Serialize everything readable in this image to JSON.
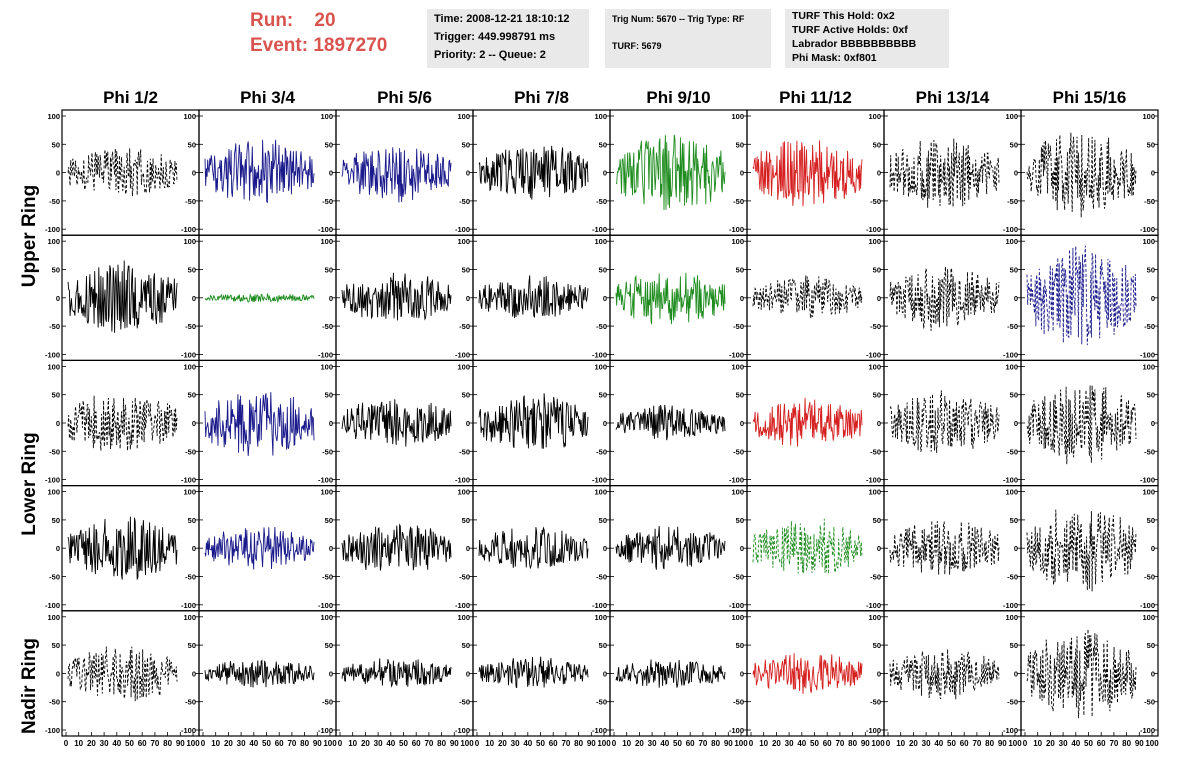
{
  "run": {
    "run_label": "Run:",
    "run_value": "20",
    "event_label": "Event:",
    "event_value": "1897270"
  },
  "info_box_1": {
    "time": "Time: 2008-12-21 18:10:12",
    "trigger": "Trigger: 449.998791 ms",
    "priority": "Priority: 2 -- Queue: 2"
  },
  "info_box_2": {
    "trig": "Trig Num: 5670 -- Trig Type: RF",
    "turf": "TURF: 5679"
  },
  "info_box_3": {
    "this_hold": "TURF This Hold: 0x2",
    "active_holds": "TURF Active Holds: 0xf",
    "labrador": "Labrador BBBBBBBBBB",
    "phi_mask": "Phi Mask: 0xf801"
  },
  "phi_headers": [
    "Phi 1/2",
    "Phi 3/4",
    "Phi 5/6",
    "Phi 7/8",
    "Phi 9/10",
    "Phi 11/12",
    "Phi 13/14",
    "Phi 15/16"
  ],
  "ring_labels": {
    "upper": "Upper Ring",
    "lower": "Lower Ring",
    "nadir": "Nadir Ring"
  },
  "y_ticks": [
    "100",
    "50",
    "0",
    "-50",
    "-100"
  ],
  "x_tick_labels": [
    "0",
    "10",
    "20",
    "30",
    "40",
    "50",
    "60",
    "70",
    "80",
    "90",
    "100"
  ],
  "colors": {
    "black": "#000000",
    "blue": "#1a1a8c",
    "green": "#1e8c1e",
    "red": "#d62020"
  },
  "panels": [
    [
      {
        "color": "black",
        "style": "dashed",
        "amp": 0.35,
        "seed": 1
      },
      {
        "color": "blue",
        "style": "solid",
        "amp": 0.45,
        "seed": 2
      },
      {
        "color": "blue",
        "style": "solid",
        "amp": 0.4,
        "seed": 3
      },
      {
        "color": "black",
        "style": "solid",
        "amp": 0.4,
        "seed": 4
      },
      {
        "color": "green",
        "style": "solid",
        "amp": 0.55,
        "seed": 5
      },
      {
        "color": "red",
        "style": "solid",
        "amp": 0.5,
        "seed": 6
      },
      {
        "color": "black",
        "style": "dashed",
        "amp": 0.5,
        "seed": 7
      },
      {
        "color": "black",
        "style": "dashed",
        "amp": 0.6,
        "seed": 8
      }
    ],
    [
      {
        "color": "black",
        "style": "solid",
        "amp": 0.5,
        "seed": 9
      },
      {
        "color": "green",
        "style": "solid",
        "amp": 0.06,
        "seed": 10
      },
      {
        "color": "black",
        "style": "solid",
        "amp": 0.35,
        "seed": 11
      },
      {
        "color": "black",
        "style": "solid",
        "amp": 0.3,
        "seed": 12
      },
      {
        "color": "green",
        "style": "solid",
        "amp": 0.4,
        "seed": 13
      },
      {
        "color": "black",
        "style": "dashed",
        "amp": 0.3,
        "seed": 14
      },
      {
        "color": "black",
        "style": "dashed",
        "amp": 0.45,
        "seed": 15
      },
      {
        "color": "blue",
        "style": "dashed",
        "amp": 0.7,
        "seed": 16
      }
    ],
    [
      {
        "color": "black",
        "style": "dashed",
        "amp": 0.45,
        "seed": 17
      },
      {
        "color": "blue",
        "style": "solid",
        "amp": 0.5,
        "seed": 18
      },
      {
        "color": "black",
        "style": "solid",
        "amp": 0.35,
        "seed": 19
      },
      {
        "color": "black",
        "style": "solid",
        "amp": 0.4,
        "seed": 20
      },
      {
        "color": "black",
        "style": "solid",
        "amp": 0.25,
        "seed": 21
      },
      {
        "color": "red",
        "style": "solid",
        "amp": 0.35,
        "seed": 22
      },
      {
        "color": "black",
        "style": "dashed",
        "amp": 0.45,
        "seed": 23
      },
      {
        "color": "black",
        "style": "dashed",
        "amp": 0.55,
        "seed": 24
      }
    ],
    [
      {
        "color": "black",
        "style": "solid",
        "amp": 0.45,
        "seed": 25
      },
      {
        "color": "blue",
        "style": "solid",
        "amp": 0.3,
        "seed": 26
      },
      {
        "color": "black",
        "style": "solid",
        "amp": 0.35,
        "seed": 27
      },
      {
        "color": "black",
        "style": "solid",
        "amp": 0.3,
        "seed": 28
      },
      {
        "color": "black",
        "style": "solid",
        "amp": 0.3,
        "seed": 29
      },
      {
        "color": "green",
        "style": "dashed",
        "amp": 0.4,
        "seed": 30
      },
      {
        "color": "black",
        "style": "dashed",
        "amp": 0.4,
        "seed": 31
      },
      {
        "color": "black",
        "style": "dashed",
        "amp": 0.6,
        "seed": 32
      }
    ],
    [
      {
        "color": "black",
        "style": "dashed",
        "amp": 0.4,
        "seed": 33
      },
      {
        "color": "black",
        "style": "solid",
        "amp": 0.2,
        "seed": 34
      },
      {
        "color": "black",
        "style": "solid",
        "amp": 0.22,
        "seed": 35
      },
      {
        "color": "black",
        "style": "solid",
        "amp": 0.22,
        "seed": 36
      },
      {
        "color": "black",
        "style": "solid",
        "amp": 0.2,
        "seed": 37
      },
      {
        "color": "red",
        "style": "solid",
        "amp": 0.3,
        "seed": 38
      },
      {
        "color": "black",
        "style": "dashed",
        "amp": 0.35,
        "seed": 39
      },
      {
        "color": "black",
        "style": "dashed",
        "amp": 0.6,
        "seed": 40
      }
    ]
  ]
}
